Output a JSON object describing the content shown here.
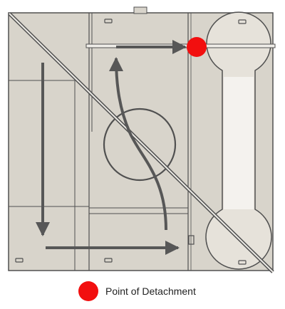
{
  "colors": {
    "panel_fill": "#d8d4cb",
    "panel_stroke": "#505050",
    "arrow": "#575757",
    "detachment_point": "#f20f0f"
  },
  "legend": {
    "label": "Point of Detachment"
  }
}
